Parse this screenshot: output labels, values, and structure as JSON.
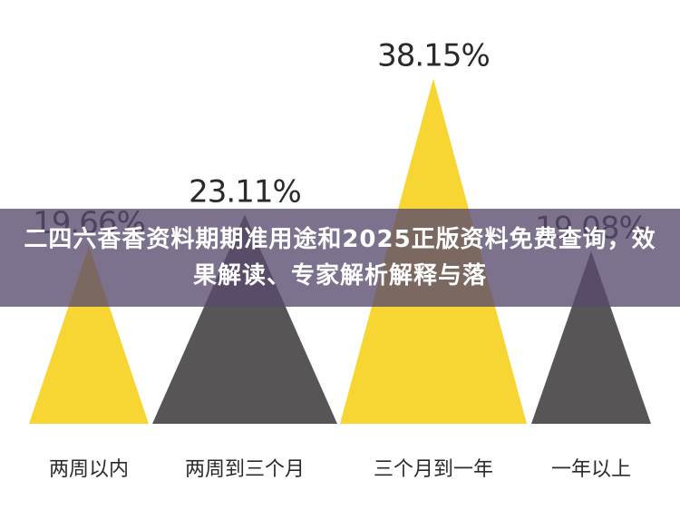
{
  "overlay": {
    "title": "二四六香香资料期期准用途和2025正版资料免费查询，效果解读、专家解析解释与落"
  },
  "chart_data": {
    "type": "triangle-bar",
    "categories": [
      "两周以内",
      "两周到三个月",
      "三个月到一年",
      "一年以上"
    ],
    "values": [
      19.66,
      23.11,
      38.15,
      19.08
    ],
    "value_labels": [
      "19.66%",
      "23.11%",
      "38.15%",
      "19.08%"
    ],
    "colors": [
      "#f7d633",
      "#575555",
      "#f7d633",
      "#575555"
    ],
    "ylim": [
      0,
      40
    ],
    "grid": false,
    "legend": "none"
  }
}
